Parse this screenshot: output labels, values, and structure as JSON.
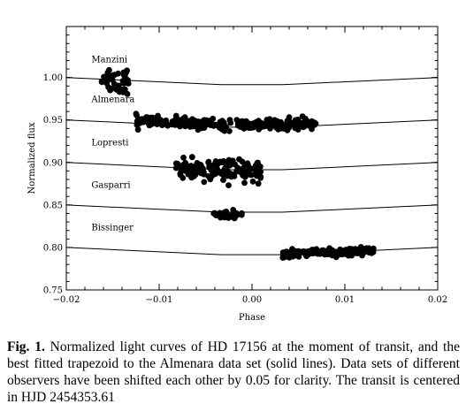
{
  "chart_data": {
    "type": "scatter",
    "xlabel": "Phase",
    "ylabel": "Normalized flux",
    "xlim": [
      -0.02,
      0.02
    ],
    "ylim": [
      0.75,
      1.06
    ],
    "xticks": [
      "−0.02",
      "−0.01",
      "0.00",
      "0.01",
      "0.02"
    ],
    "xtick_values": [
      -0.02,
      -0.01,
      0.0,
      0.01,
      0.02
    ],
    "yticks": [
      "0.75",
      "0.80",
      "0.85",
      "0.90",
      "0.95",
      "1.00"
    ],
    "ytick_values": [
      0.75,
      0.8,
      0.85,
      0.9,
      0.95,
      1.0
    ],
    "grid": false,
    "trapezoid_model": {
      "phase": [
        -0.02,
        -0.0033,
        -0.0022,
        0.0022,
        0.0033,
        0.02
      ],
      "depth": [
        0,
        -0.0085,
        -0.0085,
        -0.0085,
        -0.0085,
        0
      ],
      "shape": [
        0,
        1,
        1,
        1,
        1,
        0
      ]
    },
    "series": [
      {
        "name": "Manzini",
        "offset": 1.0,
        "x_range": [
          -0.0162,
          -0.0133
        ],
        "flux_center": 1.0,
        "scatter": 0.009,
        "n_points": 40,
        "label_at": [
          -0.0173,
          1.018
        ]
      },
      {
        "name": "Almenara",
        "offset": 0.95,
        "x_range": [
          -0.0125,
          0.0069
        ],
        "flux_center": 0.953,
        "scatter": 0.003,
        "n_points": 260,
        "label_at": [
          -0.0173,
          0.971
        ]
      },
      {
        "name": "Lopresti",
        "offset": 0.9,
        "x_range": [
          -0.0082,
          0.0012
        ],
        "flux_center": 0.899,
        "scatter": 0.006,
        "n_points": 150,
        "label_at": [
          -0.0173,
          0.92
        ]
      },
      {
        "name": "Gasparri",
        "offset": 0.85,
        "x_range": [
          -0.0042,
          -0.0011
        ],
        "flux_center": 0.847,
        "scatter": 0.003,
        "n_points": 40,
        "label_at": [
          -0.0173,
          0.87
        ]
      },
      {
        "name": "Bissinger",
        "offset": 0.8,
        "x_range": [
          0.0033,
          0.0131
        ],
        "flux_center": 0.8,
        "scatter": 0.002,
        "n_points": 210,
        "label_at": [
          -0.0173,
          0.82
        ]
      }
    ]
  },
  "caption": {
    "label": "Fig. 1.",
    "text": " Normalized light curves of HD 17156 at the moment of transit, and the best fitted trapezoid to the Almenara data set (solid lines). Data sets of different observers have been shifted each other by 0.05 for clarity. The transit is centered in HJD 2454353.61"
  }
}
